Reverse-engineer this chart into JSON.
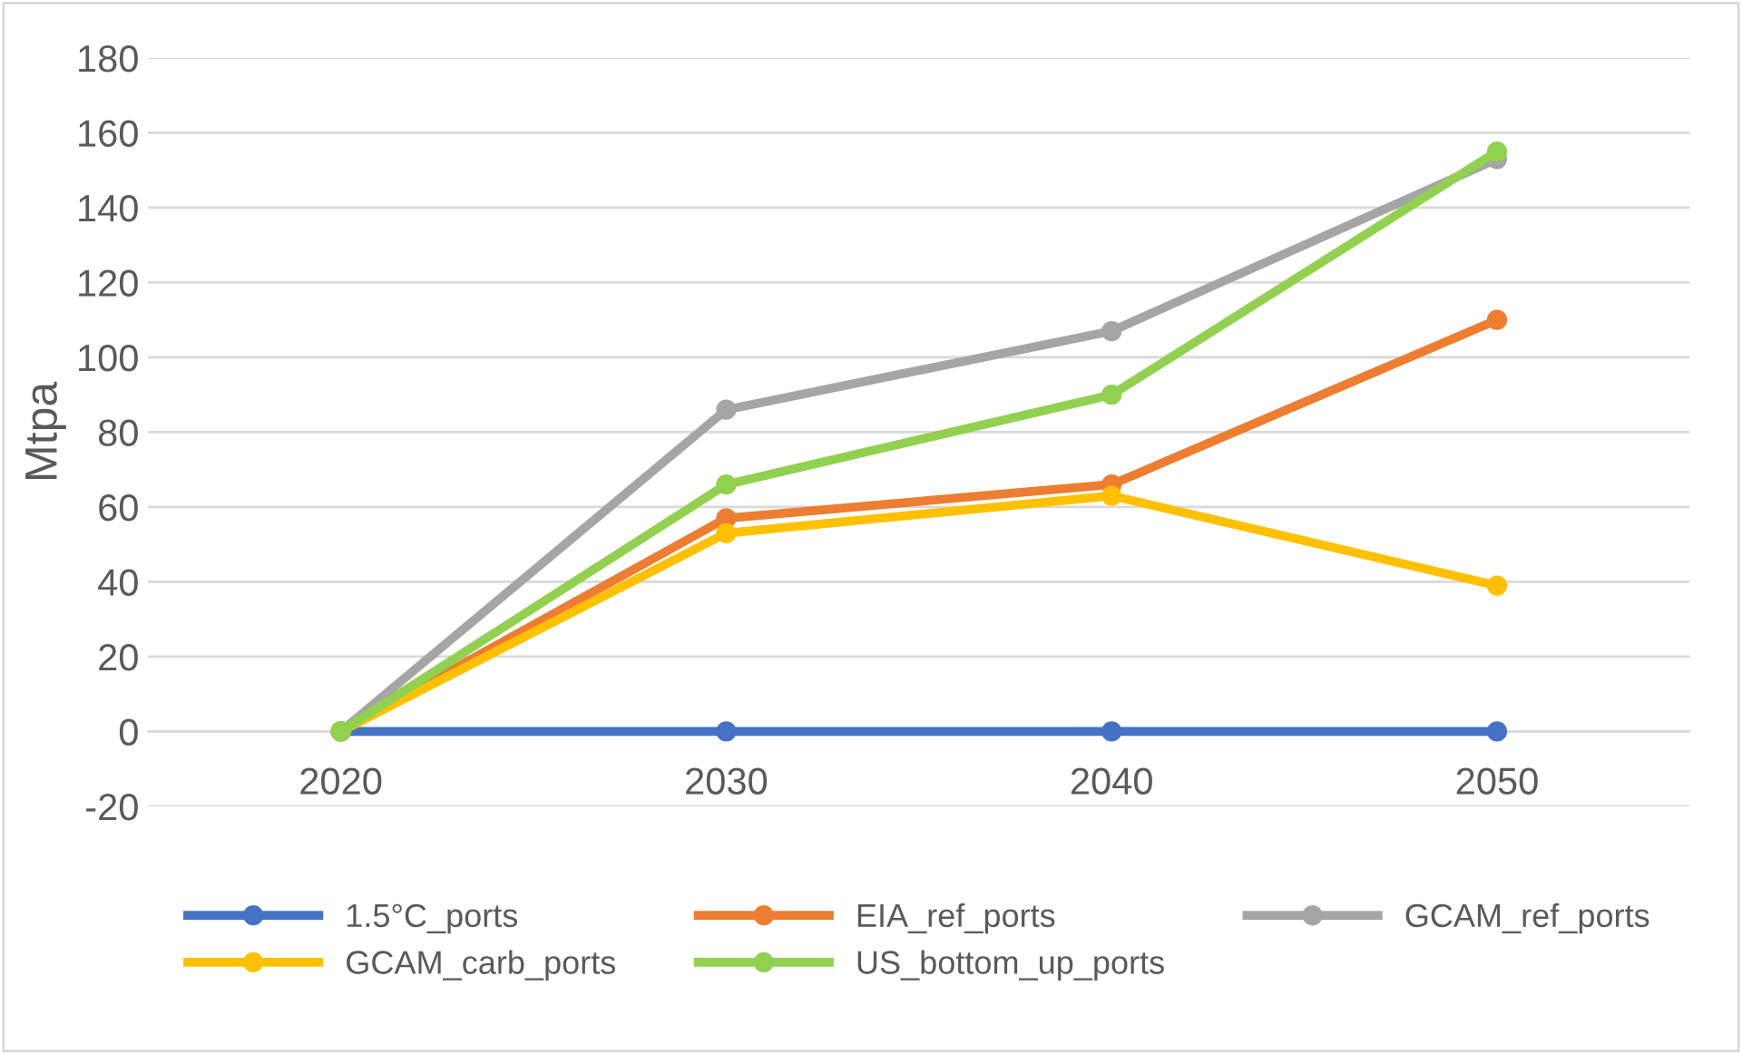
{
  "chart_data": {
    "type": "line",
    "ylabel": "Mtpa",
    "categories": [
      "2020",
      "2030",
      "2040",
      "2050"
    ],
    "series": [
      {
        "name": "1.5°C_ports",
        "color": "#4472c4",
        "values": [
          0,
          0,
          0,
          0
        ]
      },
      {
        "name": "EIA_ref_ports",
        "color": "#ed7d31",
        "values": [
          0,
          57,
          66,
          110
        ]
      },
      {
        "name": "GCAM_ref_ports",
        "color": "#a5a5a5",
        "values": [
          0,
          86,
          107,
          153
        ]
      },
      {
        "name": "GCAM_carb_ports",
        "color": "#ffc000",
        "values": [
          0,
          53,
          63,
          39
        ]
      },
      {
        "name": "US_bottom_up_ports",
        "color": "#92d050",
        "values": [
          0,
          66,
          90,
          155
        ]
      }
    ],
    "ylim": [
      -20,
      180
    ],
    "yticks": [
      -20,
      0,
      20,
      40,
      60,
      80,
      100,
      120,
      140,
      160,
      180
    ],
    "grid": "y",
    "legend": "bottom",
    "marker": "circle",
    "line_style": "solid"
  }
}
